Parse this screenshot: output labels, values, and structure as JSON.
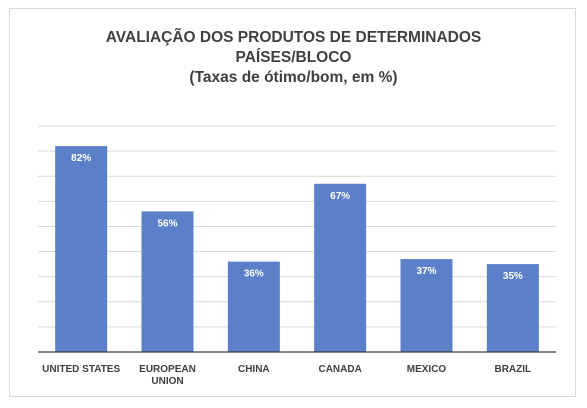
{
  "chart_data": {
    "type": "bar",
    "title_lines": [
      "AVALIAÇÃO DOS PRODUTOS DE DETERMINADOS",
      "PAÍSES/BLOCO",
      "(Taxas de ótimo/bom, em %)"
    ],
    "categories": [
      [
        "UNITED STATES"
      ],
      [
        "EUROPEAN",
        "UNION"
      ],
      [
        "CHINA"
      ],
      [
        "CANADA"
      ],
      [
        "MEXICO"
      ],
      [
        "BRAZIL"
      ]
    ],
    "values": [
      82,
      56,
      36,
      67,
      37,
      35
    ],
    "data_labels": [
      "82%",
      "56%",
      "36%",
      "67%",
      "37%",
      "35%"
    ],
    "ylim": [
      0,
      90
    ],
    "grid": true,
    "bar_color": "#5b80c9",
    "grid_color": "#d9d9d9"
  }
}
